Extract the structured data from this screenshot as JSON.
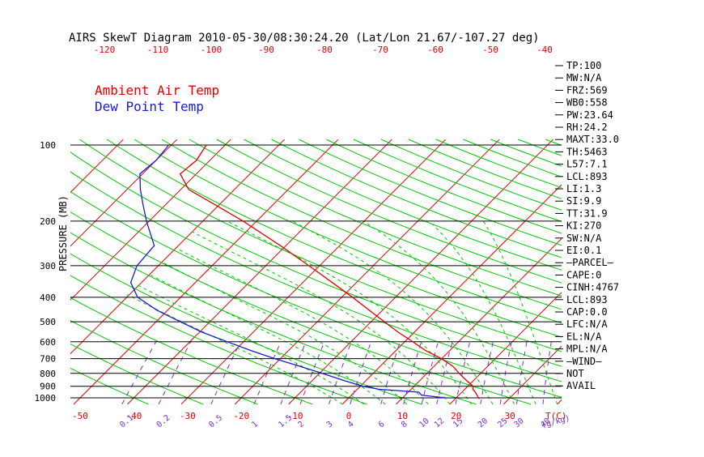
{
  "title": "AIRS SkewT Diagram 2010-05-30/08:30:24.20 (Lat/Lon 21.67/-107.27 deg)",
  "legend": [
    {
      "label": "Ambient Air Temp",
      "color": "#e00000"
    },
    {
      "label": "Dew Point Temp",
      "color": "#1a1ad0"
    }
  ],
  "colors": {
    "isotherm": "#e00000",
    "dry_adiabat": "#00c800",
    "moist_adiabat": "#00c800",
    "mixing_ratio": "#7a2fd0",
    "isobar": "#000000",
    "temperature": "#e00000",
    "dewpoint": "#1a1ad0",
    "top_tick_labels": "#e00000",
    "bottom_temp_labels": "#e00000",
    "mixing_ratio_labels": "#7a2fd0"
  },
  "chart_data": {
    "type": "line",
    "subtype": "skew-T log-P",
    "title": "AIRS SkewT Diagram 2010-05-30/08:30:24.20 (Lat/Lon 21.67/-107.27 deg)",
    "ylabel": "PRESSURE (MB)",
    "xlabel": "T(C)",
    "mixing_ratio_unit": "(g/kg)",
    "ylim": [
      1050,
      100
    ],
    "y_scale": "log",
    "xlim_bottom": [
      -55,
      40
    ],
    "grid": true,
    "legend_position": "top-left",
    "y_tick_labels": [
      {
        "p": 100,
        "label": "100"
      },
      {
        "p": 200,
        "label": "200"
      },
      {
        "p": 300,
        "label": "300"
      },
      {
        "p": 400,
        "label": "400"
      },
      {
        "p": 500,
        "label": "500"
      },
      {
        "p": 600,
        "label": "600"
      },
      {
        "p": 700,
        "label": "700"
      },
      {
        "p": 800,
        "label": "800"
      },
      {
        "p": 900,
        "label": "900"
      },
      {
        "p": 1000,
        "label": "1000"
      }
    ],
    "bottom_temp_ticks": [
      -50,
      -40,
      -30,
      -20,
      -10,
      0,
      10,
      20,
      30
    ],
    "top_temp_ticks": [
      -120,
      -110,
      -100,
      -90,
      -80,
      -70,
      -60,
      -50,
      -40
    ],
    "mixing_ratio_lines": [
      0.1,
      0.2,
      0.5,
      1,
      1.5,
      2,
      3,
      4,
      6,
      8,
      10,
      12,
      15,
      20,
      25,
      30,
      40
    ],
    "mixing_ratio_labels": [
      "0.1",
      "0.2",
      "0.5",
      "1",
      "1.5",
      "2",
      "3",
      "4",
      "6",
      "8",
      "10",
      "12",
      "15",
      "20",
      "25",
      "30",
      "40"
    ],
    "series": [
      {
        "name": "Ambient Air Temp",
        "pressure": [
          1010,
          980,
          950,
          925,
          900,
          850,
          800,
          750,
          700,
          650,
          600,
          550,
          500,
          450,
          400,
          350,
          300,
          250,
          200,
          170,
          150,
          130,
          115,
          100
        ],
        "values": [
          24.5,
          23.5,
          22.5,
          21.5,
          21.0,
          18.5,
          16.0,
          13.5,
          10.0,
          5.5,
          1.5,
          -3.0,
          -7.5,
          -12.5,
          -18.0,
          -24.5,
          -32.0,
          -41.0,
          -52.5,
          -61.5,
          -68.5,
          -73.0,
          -72.5,
          -73.5
        ]
      },
      {
        "name": "Dew Point Temp",
        "pressure": [
          1000,
          975,
          950,
          925,
          900,
          850,
          800,
          750,
          700,
          650,
          600,
          550,
          500,
          450,
          400,
          350,
          300,
          250,
          200,
          170,
          150,
          130,
          115,
          100
        ],
        "values": [
          18.0,
          13.0,
          12.0,
          4.0,
          0.5,
          -4.5,
          -9.5,
          -15.0,
          -21.0,
          -27.0,
          -33.0,
          -39.5,
          -45.5,
          -52.0,
          -58.0,
          -62.0,
          -64.0,
          -64.5,
          -70.5,
          -74.5,
          -77.5,
          -80.5,
          -80.0,
          -80.5
        ]
      }
    ]
  },
  "indices": [
    "TP:100",
    "MW:N/A",
    "FRZ:569",
    "WB0:558",
    "PW:23.64",
    "RH:24.2",
    "MAXT:33.0",
    "TH:5463",
    "L57:7.1",
    "LCL:893",
    "LI:1.3",
    "SI:9.9",
    "TT:31.9",
    "KI:270",
    "SW:N/A",
    "EI:0.1",
    "—PARCEL—",
    "CAPE:0",
    "CINH:4767",
    "LCL:893",
    "CAP:0.0",
    "LFC:N/A",
    "EL:N/A",
    "MPL:N/A",
    "—WIND—",
    "NOT",
    "AVAIL"
  ]
}
